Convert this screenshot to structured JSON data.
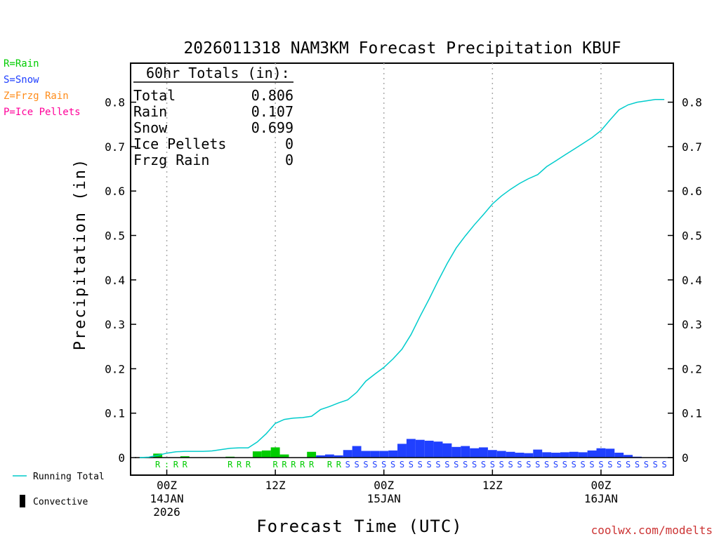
{
  "chart_data": {
    "type": "bar",
    "title": "2026011318 NAM3KM Forecast Precipitation KBUF",
    "xlabel": "Forecast Time (UTC)",
    "ylabel": "Precipitation (in)",
    "ylim": [
      0,
      0.88
    ],
    "yticks": [
      0,
      0.1,
      0.2,
      0.3,
      0.4,
      0.5,
      0.6,
      0.7,
      0.8
    ],
    "yticklabels": [
      "0",
      "0.1",
      "0.2",
      "0.3",
      "0.4",
      "0.5",
      "0.6",
      "0.7",
      "0.8"
    ],
    "xlim_hours": [
      -4,
      56
    ],
    "xticks": [
      {
        "hour": 0,
        "lines": [
          "00Z",
          "14JAN",
          "2026"
        ]
      },
      {
        "hour": 12,
        "lines": [
          "12Z"
        ]
      },
      {
        "hour": 24,
        "lines": [
          "00Z",
          "15JAN"
        ]
      },
      {
        "hour": 36,
        "lines": [
          "12Z"
        ]
      },
      {
        "hour": 48,
        "lines": [
          "00Z",
          "16JAN"
        ]
      }
    ],
    "hours": [
      -5,
      -4,
      -3,
      -2,
      -1,
      0,
      1,
      2,
      3,
      4,
      5,
      6,
      7,
      8,
      9,
      10,
      11,
      12,
      13,
      14,
      15,
      16,
      17,
      18,
      19,
      20,
      21,
      22,
      23,
      24,
      25,
      26,
      27,
      28,
      29,
      30,
      31,
      32,
      33,
      34,
      35,
      36,
      37,
      38,
      39,
      40,
      41,
      42,
      43,
      44,
      45,
      46,
      47,
      48,
      49,
      50,
      51,
      52,
      53,
      54,
      55
    ],
    "series": [
      {
        "name": "Rain",
        "color": "#00cc00",
        "values": [
          0,
          0,
          0,
          0,
          0.009,
          0,
          0,
          0.003,
          0,
          0,
          0,
          0,
          0.002,
          0,
          0,
          0.014,
          0.016,
          0.023,
          0.007,
          0,
          0,
          0.013,
          0,
          0,
          0,
          0,
          0,
          0,
          0,
          0,
          0,
          0,
          0,
          0,
          0,
          0,
          0,
          0,
          0,
          0,
          0,
          0,
          0,
          0,
          0,
          0,
          0,
          0,
          0,
          0,
          0,
          0,
          0,
          0,
          0,
          0,
          0,
          0,
          0,
          0,
          0
        ]
      },
      {
        "name": "Snow",
        "color": "#2040ff",
        "values": [
          0,
          0,
          0,
          0,
          0,
          0,
          0,
          0,
          0,
          0,
          0,
          0,
          0,
          0,
          0,
          0,
          0,
          0,
          0,
          0,
          0,
          0,
          0.005,
          0.007,
          0.005,
          0.017,
          0.026,
          0.015,
          0.015,
          0.015,
          0.016,
          0.031,
          0.042,
          0.04,
          0.038,
          0.036,
          0.032,
          0.024,
          0.026,
          0.021,
          0.023,
          0.017,
          0.015,
          0.013,
          0.011,
          0.01,
          0.018,
          0.012,
          0.011,
          0.012,
          0.013,
          0.012,
          0.016,
          0.021,
          0.02,
          0.011,
          0.006,
          0.002,
          0,
          0,
          0
        ]
      },
      {
        "name": "Running Total",
        "color": "#00cccc",
        "values": [
          0.0,
          0.0,
          0.0,
          0.001,
          0.005,
          0.01,
          0.013,
          0.014,
          0.014,
          0.014,
          0.015,
          0.018,
          0.021,
          0.022,
          0.022,
          0.035,
          0.054,
          0.077,
          0.086,
          0.089,
          0.09,
          0.093,
          0.108,
          0.115,
          0.123,
          0.13,
          0.147,
          0.172,
          0.188,
          0.203,
          0.222,
          0.244,
          0.277,
          0.318,
          0.357,
          0.398,
          0.437,
          0.472,
          0.499,
          0.524,
          0.547,
          0.571,
          0.589,
          0.604,
          0.617,
          0.628,
          0.637,
          0.655,
          0.668,
          0.681,
          0.694,
          0.707,
          0.72,
          0.736,
          0.76,
          0.783,
          0.794,
          0.8,
          0.803,
          0.806,
          0.806
        ]
      }
    ],
    "ptype_symbols": [
      "",
      "",
      "",
      "",
      "R",
      ":",
      "R",
      "R",
      "",
      "",
      "",
      "",
      "R",
      "R",
      "R",
      "",
      "",
      "R",
      "R",
      "R",
      "R",
      "R",
      "",
      "R",
      "R",
      "S",
      "S",
      "S",
      "S",
      "S",
      "S",
      "S",
      "S",
      "S",
      "S",
      "S",
      "S",
      "S",
      "S",
      "S",
      "S",
      "S",
      "S",
      "S",
      "S",
      "S",
      "S",
      "S",
      "S",
      "S",
      "S",
      "S",
      "S",
      "S",
      "S",
      "S",
      "S",
      "S",
      "S",
      "S",
      "S"
    ],
    "ptype_colors": {
      "R": "#00cc00",
      ":": "#00cc00",
      "S": "#2040ff"
    }
  },
  "type_legend": [
    {
      "label": "R=Rain",
      "color": "#00cc00"
    },
    {
      "label": "S=Snow",
      "color": "#2040ff"
    },
    {
      "label": "Z=Frzg Rain",
      "color": "#ff8c1a"
    },
    {
      "label": "P=Ice Pellets",
      "color": "#ff0099"
    }
  ],
  "totals": {
    "heading": "60hr Totals (in):",
    "rows": [
      {
        "label": "Total",
        "value": "0.806"
      },
      {
        "label": "Rain",
        "value": "0.107"
      },
      {
        "label": "Snow",
        "value": "0.699"
      },
      {
        "label": "Ice Pellets",
        "value": "0"
      },
      {
        "label": "Frzg Rain",
        "value": "0"
      }
    ]
  },
  "line_legend": {
    "running_total": "Running Total",
    "convective": "Convective"
  },
  "credit": "coolwx.com/modelts"
}
